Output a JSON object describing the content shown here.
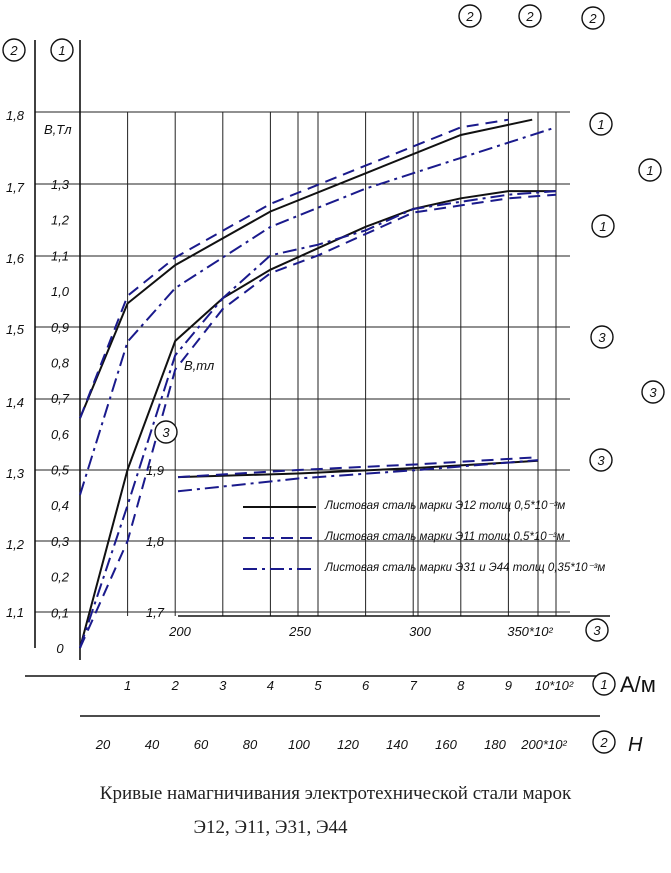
{
  "chart_data": {
    "type": "line",
    "caption_line1": "Кривые намагничивания электротехнической стали марок",
    "caption_line2": "Э12, Э11, Э31, Э44",
    "scale_markers": [
      "2",
      "1",
      "3"
    ],
    "y_axis_outer": {
      "ticks": [
        "1,8",
        "1,7",
        "1,6",
        "1,5",
        "1,4",
        "1,3",
        "1,2",
        "1,1"
      ]
    },
    "y_axis_inner": {
      "ticks": [
        "1,3",
        "1,2",
        "1,1",
        "1,0",
        "0,9",
        "0,8",
        "0,7",
        "0,6",
        "0,5",
        "0,4",
        "0,3",
        "0,2",
        "0,1",
        "0"
      ],
      "label": "B,Tл"
    },
    "y_axis_scale3": {
      "ticks": [
        "1,9",
        "1,8",
        "1,7"
      ],
      "label": "B,тл"
    },
    "x_axis_1": {
      "ticks": [
        "1",
        "2",
        "3",
        "4",
        "5",
        "6",
        "7",
        "8",
        "9",
        "10*10²"
      ],
      "unit": "А/м"
    },
    "x_axis_2": {
      "ticks": [
        "20",
        "40",
        "60",
        "80",
        "100",
        "120",
        "140",
        "160",
        "180",
        "200*10²"
      ],
      "unit": "Н"
    },
    "x_axis_3": {
      "ticks": [
        "200",
        "250",
        "300",
        "350*10²"
      ]
    },
    "series": [
      {
        "name": "Листовая сталь марки Э12 толщ 0,5*10⁻³м",
        "style": "solid",
        "color": "#111111"
      },
      {
        "name": "Листовая сталь марки Э11 толщ 0,5*10⁻³м",
        "style": "dashed",
        "color": "#1a1a8c"
      },
      {
        "name": "Листовая сталь марки Э31 и Э44 толщ 0,35*10⁻³м",
        "style": "dashdot",
        "color": "#1a1a8c"
      }
    ],
    "curves": [
      {
        "series": 0,
        "scale": "2",
        "x": [
          0,
          20,
          40,
          80,
          120,
          160,
          190
        ],
        "y": [
          1.4,
          1.55,
          1.6,
          1.67,
          1.72,
          1.77,
          1.79
        ]
      },
      {
        "series": 1,
        "scale": "2",
        "x": [
          0,
          20,
          40,
          80,
          120,
          160,
          180
        ],
        "y": [
          1.4,
          1.56,
          1.61,
          1.68,
          1.73,
          1.78,
          1.79
        ]
      },
      {
        "series": 2,
        "scale": "2",
        "x": [
          0,
          20,
          40,
          80,
          120,
          160,
          200
        ],
        "y": [
          1.3,
          1.5,
          1.57,
          1.65,
          1.7,
          1.74,
          1.78
        ]
      },
      {
        "series": 0,
        "scale": "1",
        "x": [
          0,
          1,
          2,
          3,
          4,
          5,
          6,
          7,
          8,
          9,
          10
        ],
        "y": [
          0,
          0.5,
          0.86,
          0.98,
          1.06,
          1.12,
          1.18,
          1.23,
          1.26,
          1.28,
          1.28
        ]
      },
      {
        "series": 1,
        "scale": "1",
        "x": [
          0,
          1,
          2,
          3,
          4,
          5,
          6,
          7,
          8,
          9,
          10
        ],
        "y": [
          0,
          0.3,
          0.78,
          0.95,
          1.05,
          1.1,
          1.16,
          1.22,
          1.24,
          1.26,
          1.27
        ]
      },
      {
        "series": 2,
        "scale": "1",
        "x": [
          0,
          1,
          2,
          3,
          4,
          5,
          6,
          7,
          8,
          9,
          10
        ],
        "y": [
          0,
          0.4,
          0.82,
          0.98,
          1.1,
          1.13,
          1.17,
          1.23,
          1.25,
          1.27,
          1.28
        ]
      },
      {
        "series": 0,
        "scale": "3",
        "x": [
          200,
          250,
          300,
          350
        ],
        "y": [
          1.89,
          1.895,
          1.903,
          1.913
        ]
      },
      {
        "series": 1,
        "scale": "3",
        "x": [
          200,
          250,
          300,
          350
        ],
        "y": [
          1.89,
          1.9,
          1.908,
          1.918
        ]
      },
      {
        "series": 2,
        "scale": "3",
        "x": [
          200,
          250,
          300,
          350
        ],
        "y": [
          1.87,
          1.888,
          1.9,
          1.914
        ]
      }
    ]
  }
}
